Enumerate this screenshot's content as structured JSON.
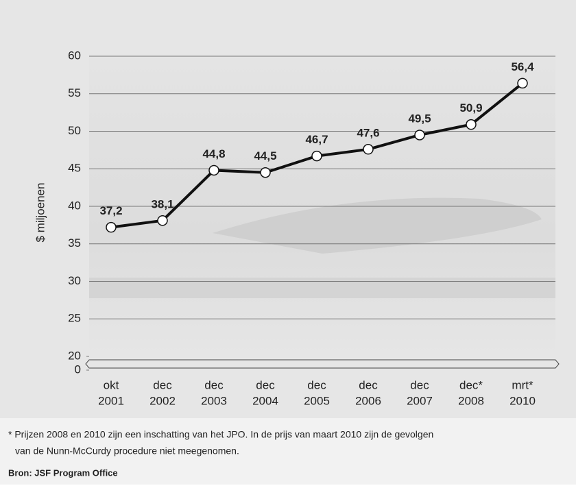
{
  "chart_data": {
    "type": "line",
    "y_label": "$ miljoenen",
    "categories": [
      [
        "okt",
        "2001"
      ],
      [
        "dec",
        "2002"
      ],
      [
        "dec",
        "2003"
      ],
      [
        "dec",
        "2004"
      ],
      [
        "dec",
        "2005"
      ],
      [
        "dec",
        "2006"
      ],
      [
        "dec",
        "2007"
      ],
      [
        "dec*",
        "2008"
      ],
      [
        "mrt*",
        "2010"
      ]
    ],
    "values": [
      37.2,
      38.1,
      44.8,
      44.5,
      46.7,
      47.6,
      49.5,
      50.9,
      56.4
    ],
    "value_labels": [
      "37,2",
      "38,1",
      "44,8",
      "44,5",
      "46,7",
      "47,6",
      "49,5",
      "50,9",
      "56,4"
    ],
    "color": "#111111",
    "ylim": [
      0,
      60
    ],
    "yticks": [
      0,
      20,
      25,
      30,
      35,
      40,
      45,
      50,
      55,
      60
    ],
    "axis_break": [
      0,
      20
    ],
    "grid": true,
    "footnote": [
      "* Prijzen 2008 en 2010 zijn een inschatting van het JPO. In de prijs van maart 2010 zijn de gevolgen",
      "van de Nunn-McCurdy procedure niet meegenomen."
    ],
    "source": "Bron: JSF Program Office"
  }
}
